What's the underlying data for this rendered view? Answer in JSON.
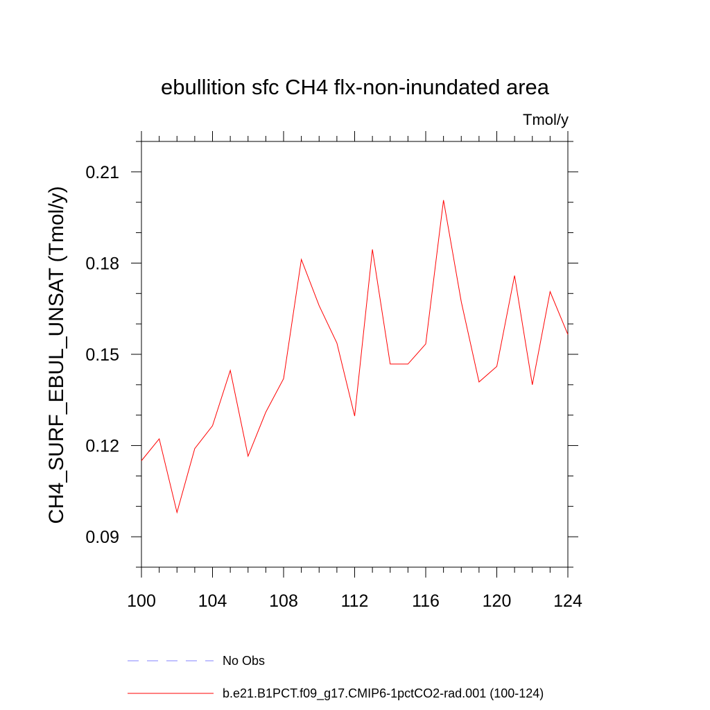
{
  "chart_data": {
    "type": "line",
    "title": "ebullition sfc CH4 flx-non-inundated area",
    "units_label": "Tmol/y",
    "ylabel": "CH4_SURF_EBUL_UNSAT  (Tmol/y)",
    "xlabel": "",
    "xlim": [
      100,
      124
    ],
    "ylim": [
      0.08,
      0.22
    ],
    "x_ticks": [
      100,
      104,
      108,
      112,
      116,
      120,
      124
    ],
    "x_tick_labels": [
      "100",
      "104",
      "108",
      "112",
      "116",
      "120",
      "124"
    ],
    "y_ticks": [
      0.09,
      0.12,
      0.15,
      0.18,
      0.21
    ],
    "y_tick_labels": [
      "0.09",
      "0.12",
      "0.15",
      "0.18",
      "0.21"
    ],
    "x_minor_step": 1,
    "y_minor_step": 0.01,
    "grid": false,
    "legend_placement": "bottom",
    "series": [
      {
        "name": "No Obs",
        "color": "#8080ff",
        "dash": "dashed",
        "values": []
      },
      {
        "name": "b.e21.B1PCT.f09_g17.CMIP6-1pctCO2-rad.001 (100-124)",
        "color": "#ff0000",
        "dash": "solid",
        "x": [
          100,
          101,
          102,
          103,
          104,
          105,
          106,
          107,
          108,
          109,
          110,
          111,
          112,
          113,
          114,
          115,
          116,
          117,
          118,
          119,
          120,
          121,
          122,
          123,
          124
        ],
        "values": [
          0.115,
          0.1222,
          0.098,
          0.119,
          0.1265,
          0.1447,
          0.1165,
          0.131,
          0.142,
          0.1812,
          0.166,
          0.1537,
          0.1297,
          0.1845,
          0.1468,
          0.1468,
          0.1534,
          0.2007,
          0.1673,
          0.1409,
          0.146,
          0.1759,
          0.14,
          0.1706,
          0.1565
        ]
      }
    ]
  }
}
